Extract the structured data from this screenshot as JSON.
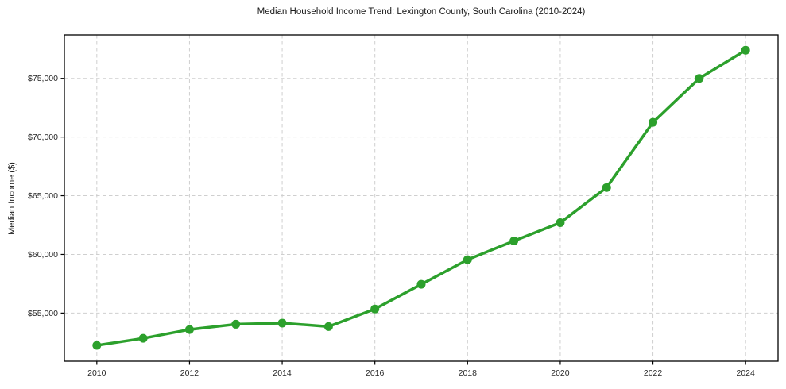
{
  "chart_data": {
    "type": "line",
    "title": "Median Household Income Trend: Lexington County, South Carolina (2010-2024)",
    "xlabel": "",
    "ylabel": "Median Income ($)",
    "x": [
      2010,
      2011,
      2012,
      2013,
      2014,
      2015,
      2016,
      2017,
      2018,
      2019,
      2020,
      2021,
      2022,
      2023,
      2024
    ],
    "series": [
      {
        "name": "Median Household Income",
        "values": [
          52250,
          52850,
          53600,
          54050,
          54150,
          53850,
          55350,
          57450,
          59550,
          61150,
          62700,
          65700,
          71250,
          75000,
          77400
        ]
      }
    ],
    "xlim": [
      2009.3,
      2024.7
    ],
    "ylim": [
      50900,
      78700
    ],
    "xticks": [
      {
        "value": 2010,
        "label": "2010"
      },
      {
        "value": 2012,
        "label": "2012"
      },
      {
        "value": 2014,
        "label": "2014"
      },
      {
        "value": 2016,
        "label": "2016"
      },
      {
        "value": 2018,
        "label": "2018"
      },
      {
        "value": 2020,
        "label": "2020"
      },
      {
        "value": 2022,
        "label": "2022"
      },
      {
        "value": 2024,
        "label": "2024"
      }
    ],
    "yticks": [
      {
        "value": 55000,
        "label": "$55,000"
      },
      {
        "value": 60000,
        "label": "$60,000"
      },
      {
        "value": 65000,
        "label": "$65,000"
      },
      {
        "value": 70000,
        "label": "$70,000"
      },
      {
        "value": 75000,
        "label": "$75,000"
      }
    ],
    "grid": true,
    "grid_style": "dashed",
    "legend_position": "none",
    "line_color": "#2ca02c",
    "marker": "circle",
    "marker_color": "#2ca02c",
    "grid_color": "#cfcfcf",
    "spine_color": "#000000",
    "text_color": "#262626",
    "background_color": "#ffffff"
  }
}
